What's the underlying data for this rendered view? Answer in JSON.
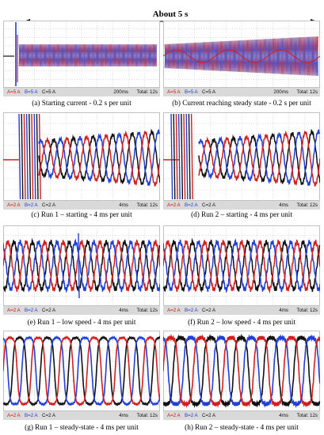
{
  "banner": {
    "label": "About 5 s"
  },
  "colors": {
    "phase_a": "#d11f1f",
    "phase_b": "#1f3fd6",
    "phase_c": "#111111",
    "grid": "#b8b8b8",
    "statusbar": "#d9d9d9"
  },
  "panels": [
    {
      "id": "a",
      "caption": "(a) Starting current - 0.2 s per unit",
      "status": {
        "ch_a": "A=5 A",
        "ch_b": "B=5 A",
        "ch_c": "C=5 A",
        "time": "200ms",
        "total": "Total: 12s"
      }
    },
    {
      "id": "b",
      "caption": "(b) Current reaching steady state - 0.2 s per unit",
      "status": {
        "ch_a": "A=5 A",
        "ch_b": "B=5 A",
        "ch_c": "C=5 A",
        "time": "200ms",
        "total": "Total: 12s"
      }
    },
    {
      "id": "c",
      "caption": "(c) Run 1 – starting - 4 ms per unit",
      "status": {
        "ch_a": "A=2 A",
        "ch_b": "B=2 A",
        "ch_c": "C=2 A",
        "time": "4ms",
        "total": "Total: 12s"
      }
    },
    {
      "id": "d",
      "caption": "(d) Run 2 – starting - 4 ms per unit",
      "status": {
        "ch_a": "A=2 A",
        "ch_b": "B=2 A",
        "ch_c": "C=2 A",
        "time": "4ms",
        "total": "Total: 12s"
      }
    },
    {
      "id": "e",
      "caption": "(e) Run 1 – low speed - 4 ms per unit",
      "status": {
        "ch_a": "A=2 A",
        "ch_b": "B=2 A",
        "ch_c": "C=2 A",
        "time": "4ms",
        "total": "Total: 12s"
      }
    },
    {
      "id": "f",
      "caption": "(f) Run 2 – low speed - 4 ms per unit",
      "status": {
        "ch_a": "A=2 A",
        "ch_b": "B=2 A",
        "ch_c": "C=2 A",
        "time": "4ms",
        "total": "Total: 12s"
      }
    },
    {
      "id": "g",
      "caption": "(g) Run 1 – steady-state - 4 ms per unit",
      "status": {
        "ch_a": "A=2 A",
        "ch_b": "B=2 A",
        "ch_c": "C=2 A",
        "time": "4ms",
        "total": "Total: 12s"
      }
    },
    {
      "id": "h",
      "caption": "(h) Run 2 – steady-state - 4 ms per unit",
      "status": {
        "ch_a": "A=2 A",
        "ch_b": "B=2 A",
        "ch_c": "C=2 A",
        "time": "4ms",
        "total": "Total: 12s"
      }
    }
  ]
}
